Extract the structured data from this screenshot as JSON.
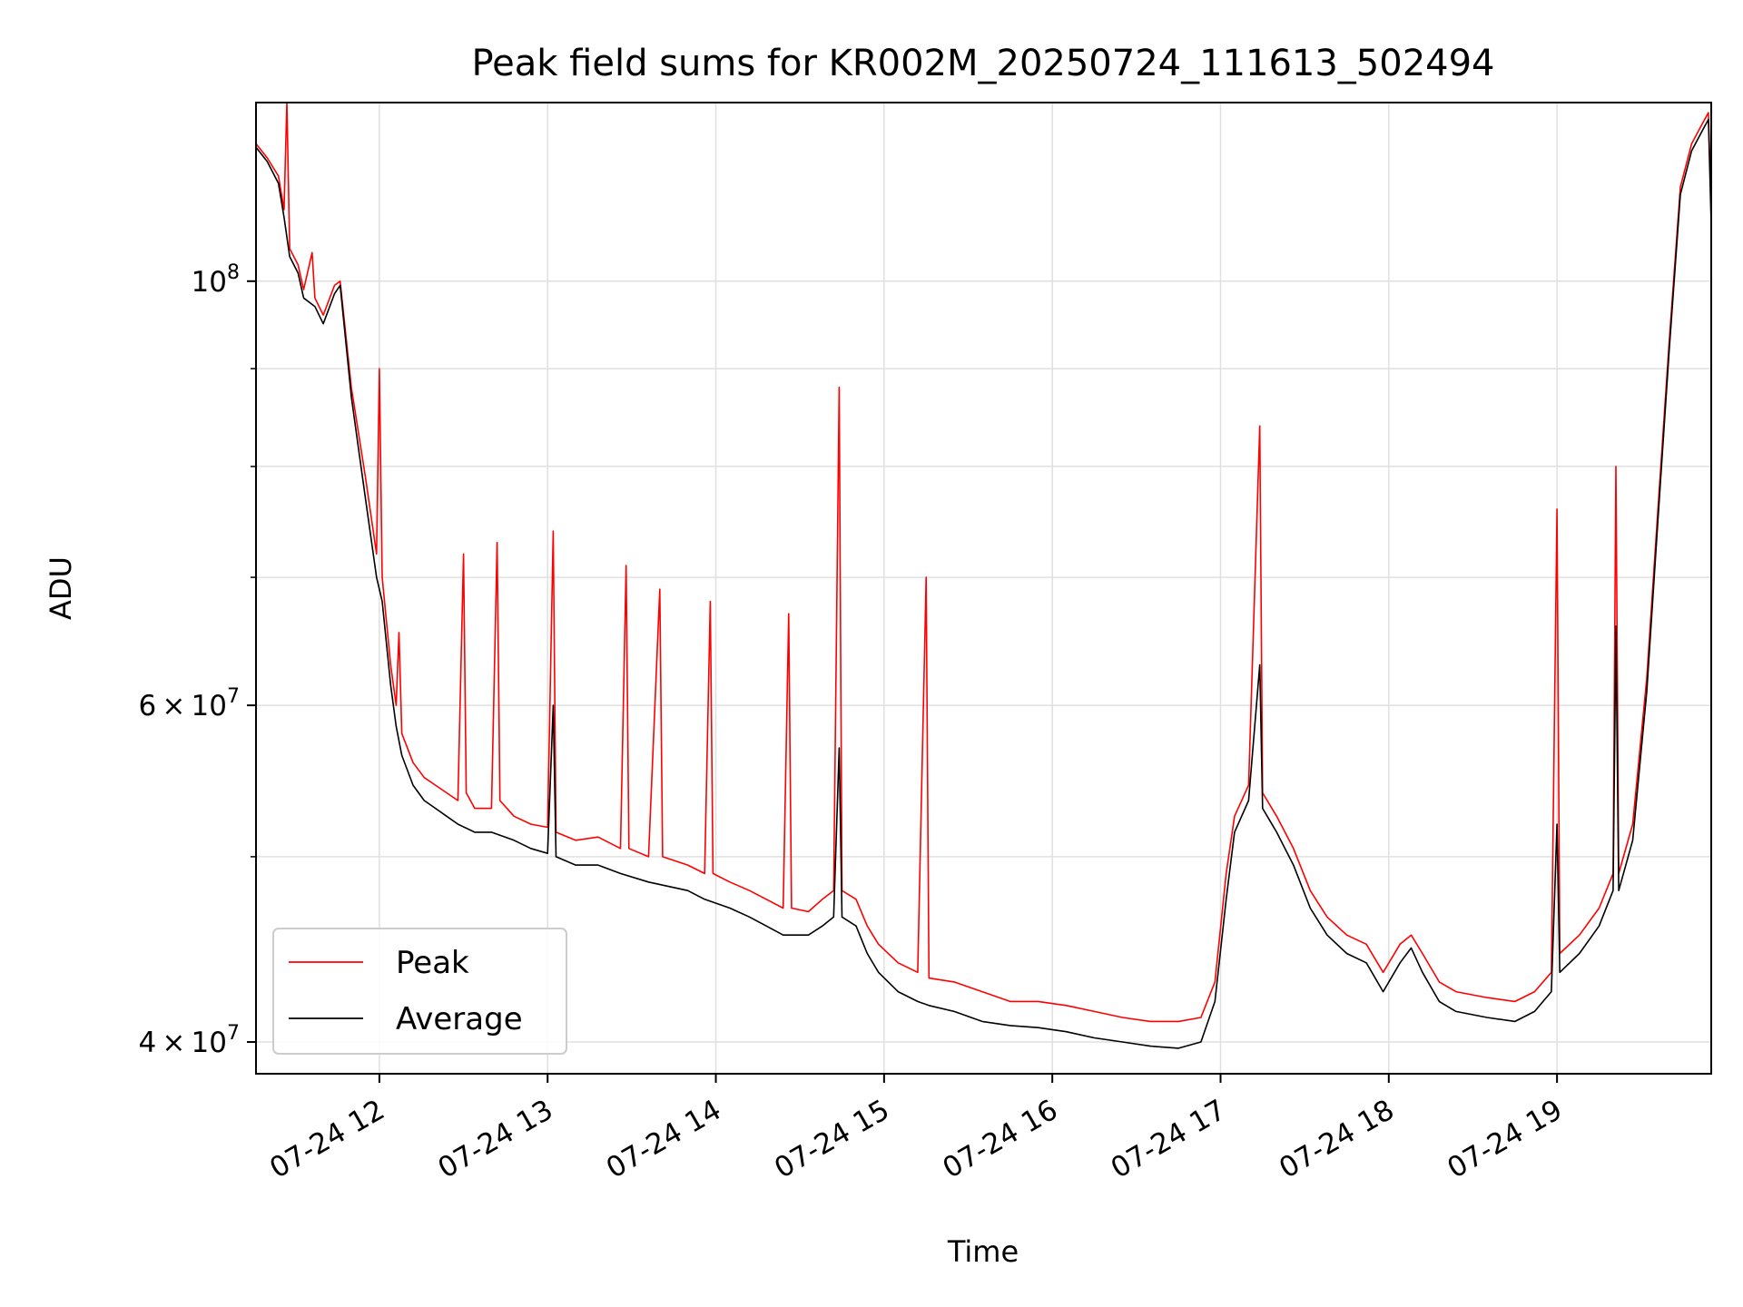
{
  "chart_data": {
    "type": "line",
    "title": "Peak field sums for KR002M_20250724_111613_502494",
    "xlabel": "Time",
    "ylabel": "ADU",
    "yscale": "log",
    "xlim": [
      "2025-07-24 11:16",
      "2025-07-24 19:55"
    ],
    "ylim": [
      38500000,
      124000000
    ],
    "x_ticks": [
      {
        "value": "2025-07-24 12:00",
        "label": "07-24 12"
      },
      {
        "value": "2025-07-24 13:00",
        "label": "07-24 13"
      },
      {
        "value": "2025-07-24 14:00",
        "label": "07-24 14"
      },
      {
        "value": "2025-07-24 15:00",
        "label": "07-24 15"
      },
      {
        "value": "2025-07-24 16:00",
        "label": "07-24 16"
      },
      {
        "value": "2025-07-24 17:00",
        "label": "07-24 17"
      },
      {
        "value": "2025-07-24 18:00",
        "label": "07-24 18"
      },
      {
        "value": "2025-07-24 19:00",
        "label": "07-24 19"
      }
    ],
    "y_ticks_major": [
      {
        "value": 40000000,
        "base": "4",
        "times": "×",
        "exp_base": "10",
        "exp": "7"
      },
      {
        "value": 60000000,
        "base": "6",
        "times": "×",
        "exp_base": "10",
        "exp": "7"
      },
      {
        "value": 100000000,
        "base": "",
        "times": "",
        "exp_base": "10",
        "exp": "8"
      }
    ],
    "y_ticks_minor": [
      50000000,
      70000000,
      80000000,
      90000000
    ],
    "grid": true,
    "legend": "lower-left",
    "series": [
      {
        "name": "Peak",
        "color": "#ff0000",
        "points": [
          [
            "2025-07-24 11:16",
            118000000
          ],
          [
            "2025-07-24 11:20",
            116000000
          ],
          [
            "2025-07-24 11:24",
            113500000
          ],
          [
            "2025-07-24 11:26",
            109000000
          ],
          [
            "2025-07-24 11:27",
            124000000
          ],
          [
            "2025-07-24 11:28",
            104000000
          ],
          [
            "2025-07-24 11:31",
            102000000
          ],
          [
            "2025-07-24 11:33",
            99000000
          ],
          [
            "2025-07-24 11:36",
            103500000
          ],
          [
            "2025-07-24 11:37",
            98000000
          ],
          [
            "2025-07-24 11:40",
            96000000
          ],
          [
            "2025-07-24 11:44",
            99500000
          ],
          [
            "2025-07-24 11:46",
            100000000
          ],
          [
            "2025-07-24 11:50",
            88000000
          ],
          [
            "2025-07-24 11:55",
            79000000
          ],
          [
            "2025-07-24 11:59",
            72000000
          ],
          [
            "2025-07-24 12:00",
            90000000
          ],
          [
            "2025-07-24 12:01",
            70000000
          ],
          [
            "2025-07-24 12:04",
            63000000
          ],
          [
            "2025-07-24 12:06",
            60000000
          ],
          [
            "2025-07-24 12:07",
            65500000
          ],
          [
            "2025-07-24 12:08",
            58000000
          ],
          [
            "2025-07-24 12:12",
            56000000
          ],
          [
            "2025-07-24 12:16",
            55000000
          ],
          [
            "2025-07-24 12:20",
            54500000
          ],
          [
            "2025-07-24 12:24",
            54000000
          ],
          [
            "2025-07-24 12:28",
            53500000
          ],
          [
            "2025-07-24 12:30",
            72000000
          ],
          [
            "2025-07-24 12:31",
            54000000
          ],
          [
            "2025-07-24 12:34",
            53000000
          ],
          [
            "2025-07-24 12:40",
            53000000
          ],
          [
            "2025-07-24 12:42",
            73000000
          ],
          [
            "2025-07-24 12:43",
            53500000
          ],
          [
            "2025-07-24 12:48",
            52500000
          ],
          [
            "2025-07-24 12:54",
            52000000
          ],
          [
            "2025-07-24 13:00",
            51800000
          ],
          [
            "2025-07-24 13:02",
            74000000
          ],
          [
            "2025-07-24 13:03",
            51500000
          ],
          [
            "2025-07-24 13:10",
            51000000
          ],
          [
            "2025-07-24 13:18",
            51200000
          ],
          [
            "2025-07-24 13:26",
            50500000
          ],
          [
            "2025-07-24 13:28",
            71000000
          ],
          [
            "2025-07-24 13:29",
            50500000
          ],
          [
            "2025-07-24 13:36",
            50000000
          ],
          [
            "2025-07-24 13:40",
            69000000
          ],
          [
            "2025-07-24 13:41",
            50000000
          ],
          [
            "2025-07-24 13:50",
            49500000
          ],
          [
            "2025-07-24 13:56",
            49000000
          ],
          [
            "2025-07-24 13:58",
            68000000
          ],
          [
            "2025-07-24 13:59",
            49000000
          ],
          [
            "2025-07-24 14:05",
            48500000
          ],
          [
            "2025-07-24 14:12",
            48000000
          ],
          [
            "2025-07-24 14:18",
            47500000
          ],
          [
            "2025-07-24 14:24",
            47000000
          ],
          [
            "2025-07-24 14:26",
            67000000
          ],
          [
            "2025-07-24 14:27",
            47000000
          ],
          [
            "2025-07-24 14:33",
            46800000
          ],
          [
            "2025-07-24 14:38",
            47500000
          ],
          [
            "2025-07-24 14:42",
            48000000
          ],
          [
            "2025-07-24 14:44",
            88000000
          ],
          [
            "2025-07-24 14:45",
            48000000
          ],
          [
            "2025-07-24 14:50",
            47500000
          ],
          [
            "2025-07-24 14:54",
            46000000
          ],
          [
            "2025-07-24 14:58",
            45000000
          ],
          [
            "2025-07-24 15:05",
            44000000
          ],
          [
            "2025-07-24 15:12",
            43500000
          ],
          [
            "2025-07-24 15:15",
            70000000
          ],
          [
            "2025-07-24 15:16",
            43200000
          ],
          [
            "2025-07-24 15:25",
            43000000
          ],
          [
            "2025-07-24 15:35",
            42500000
          ],
          [
            "2025-07-24 15:45",
            42000000
          ],
          [
            "2025-07-24 15:55",
            42000000
          ],
          [
            "2025-07-24 16:05",
            41800000
          ],
          [
            "2025-07-24 16:15",
            41500000
          ],
          [
            "2025-07-24 16:25",
            41200000
          ],
          [
            "2025-07-24 16:35",
            41000000
          ],
          [
            "2025-07-24 16:45",
            41000000
          ],
          [
            "2025-07-24 16:53",
            41200000
          ],
          [
            "2025-07-24 16:58",
            43000000
          ],
          [
            "2025-07-24 17:02",
            49000000
          ],
          [
            "2025-07-24 17:05",
            52500000
          ],
          [
            "2025-07-24 17:10",
            54500000
          ],
          [
            "2025-07-24 17:14",
            84000000
          ],
          [
            "2025-07-24 17:15",
            54000000
          ],
          [
            "2025-07-24 17:20",
            52500000
          ],
          [
            "2025-07-24 17:26",
            50500000
          ],
          [
            "2025-07-24 17:32",
            48000000
          ],
          [
            "2025-07-24 17:38",
            46500000
          ],
          [
            "2025-07-24 17:45",
            45500000
          ],
          [
            "2025-07-24 17:52",
            45000000
          ],
          [
            "2025-07-24 17:58",
            43500000
          ],
          [
            "2025-07-24 18:04",
            45000000
          ],
          [
            "2025-07-24 18:08",
            45500000
          ],
          [
            "2025-07-24 18:12",
            44500000
          ],
          [
            "2025-07-24 18:18",
            43000000
          ],
          [
            "2025-07-24 18:24",
            42500000
          ],
          [
            "2025-07-24 18:35",
            42200000
          ],
          [
            "2025-07-24 18:45",
            42000000
          ],
          [
            "2025-07-24 18:52",
            42500000
          ],
          [
            "2025-07-24 18:58",
            43500000
          ],
          [
            "2025-07-24 19:00",
            76000000
          ],
          [
            "2025-07-24 19:01",
            44500000
          ],
          [
            "2025-07-24 19:08",
            45500000
          ],
          [
            "2025-07-24 19:15",
            47000000
          ],
          [
            "2025-07-24 19:20",
            49000000
          ],
          [
            "2025-07-24 19:21",
            80000000
          ],
          [
            "2025-07-24 19:22",
            49000000
          ],
          [
            "2025-07-24 19:27",
            52000000
          ],
          [
            "2025-07-24 19:32",
            62000000
          ],
          [
            "2025-07-24 19:36",
            76000000
          ],
          [
            "2025-07-24 19:40",
            93000000
          ],
          [
            "2025-07-24 19:44",
            112000000
          ],
          [
            "2025-07-24 19:48",
            118000000
          ],
          [
            "2025-07-24 19:52",
            121000000
          ],
          [
            "2025-07-24 19:54",
            122500000
          ],
          [
            "2025-07-24 19:55",
            109000000
          ]
        ]
      },
      {
        "name": "Average",
        "color": "#000000",
        "points": [
          [
            "2025-07-24 11:16",
            117500000
          ],
          [
            "2025-07-24 11:20",
            115500000
          ],
          [
            "2025-07-24 11:24",
            112500000
          ],
          [
            "2025-07-24 11:26",
            108000000
          ],
          [
            "2025-07-24 11:28",
            103000000
          ],
          [
            "2025-07-24 11:31",
            101000000
          ],
          [
            "2025-07-24 11:33",
            98000000
          ],
          [
            "2025-07-24 11:37",
            97000000
          ],
          [
            "2025-07-24 11:40",
            95000000
          ],
          [
            "2025-07-24 11:44",
            98500000
          ],
          [
            "2025-07-24 11:46",
            99500000
          ],
          [
            "2025-07-24 11:50",
            87000000
          ],
          [
            "2025-07-24 11:55",
            77000000
          ],
          [
            "2025-07-24 11:59",
            70000000
          ],
          [
            "2025-07-24 12:01",
            68000000
          ],
          [
            "2025-07-24 12:04",
            61500000
          ],
          [
            "2025-07-24 12:06",
            58500000
          ],
          [
            "2025-07-24 12:08",
            56500000
          ],
          [
            "2025-07-24 12:12",
            54500000
          ],
          [
            "2025-07-24 12:16",
            53500000
          ],
          [
            "2025-07-24 12:20",
            53000000
          ],
          [
            "2025-07-24 12:24",
            52500000
          ],
          [
            "2025-07-24 12:28",
            52000000
          ],
          [
            "2025-07-24 12:34",
            51500000
          ],
          [
            "2025-07-24 12:40",
            51500000
          ],
          [
            "2025-07-24 12:48",
            51000000
          ],
          [
            "2025-07-24 12:54",
            50500000
          ],
          [
            "2025-07-24 13:00",
            50200000
          ],
          [
            "2025-07-24 13:02",
            60000000
          ],
          [
            "2025-07-24 13:03",
            50000000
          ],
          [
            "2025-07-24 13:10",
            49500000
          ],
          [
            "2025-07-24 13:18",
            49500000
          ],
          [
            "2025-07-24 13:26",
            49000000
          ],
          [
            "2025-07-24 13:36",
            48500000
          ],
          [
            "2025-07-24 13:50",
            48000000
          ],
          [
            "2025-07-24 13:56",
            47500000
          ],
          [
            "2025-07-24 14:05",
            47000000
          ],
          [
            "2025-07-24 14:12",
            46500000
          ],
          [
            "2025-07-24 14:18",
            46000000
          ],
          [
            "2025-07-24 14:24",
            45500000
          ],
          [
            "2025-07-24 14:33",
            45500000
          ],
          [
            "2025-07-24 14:38",
            46000000
          ],
          [
            "2025-07-24 14:42",
            46500000
          ],
          [
            "2025-07-24 14:44",
            57000000
          ],
          [
            "2025-07-24 14:45",
            46500000
          ],
          [
            "2025-07-24 14:50",
            46000000
          ],
          [
            "2025-07-24 14:54",
            44500000
          ],
          [
            "2025-07-24 14:58",
            43500000
          ],
          [
            "2025-07-24 15:05",
            42500000
          ],
          [
            "2025-07-24 15:12",
            42000000
          ],
          [
            "2025-07-24 15:16",
            41800000
          ],
          [
            "2025-07-24 15:25",
            41500000
          ],
          [
            "2025-07-24 15:35",
            41000000
          ],
          [
            "2025-07-24 15:45",
            40800000
          ],
          [
            "2025-07-24 15:55",
            40700000
          ],
          [
            "2025-07-24 16:05",
            40500000
          ],
          [
            "2025-07-24 16:15",
            40200000
          ],
          [
            "2025-07-24 16:25",
            40000000
          ],
          [
            "2025-07-24 16:35",
            39800000
          ],
          [
            "2025-07-24 16:45",
            39700000
          ],
          [
            "2025-07-24 16:53",
            40000000
          ],
          [
            "2025-07-24 16:58",
            42000000
          ],
          [
            "2025-07-24 17:02",
            47500000
          ],
          [
            "2025-07-24 17:05",
            51500000
          ],
          [
            "2025-07-24 17:10",
            53500000
          ],
          [
            "2025-07-24 17:14",
            63000000
          ],
          [
            "2025-07-24 17:15",
            53000000
          ],
          [
            "2025-07-24 17:20",
            51500000
          ],
          [
            "2025-07-24 17:26",
            49500000
          ],
          [
            "2025-07-24 17:32",
            47000000
          ],
          [
            "2025-07-24 17:38",
            45500000
          ],
          [
            "2025-07-24 17:45",
            44500000
          ],
          [
            "2025-07-24 17:52",
            44000000
          ],
          [
            "2025-07-24 17:58",
            42500000
          ],
          [
            "2025-07-24 18:04",
            44000000
          ],
          [
            "2025-07-24 18:08",
            44800000
          ],
          [
            "2025-07-24 18:12",
            43500000
          ],
          [
            "2025-07-24 18:18",
            42000000
          ],
          [
            "2025-07-24 18:24",
            41500000
          ],
          [
            "2025-07-24 18:35",
            41200000
          ],
          [
            "2025-07-24 18:45",
            41000000
          ],
          [
            "2025-07-24 18:52",
            41500000
          ],
          [
            "2025-07-24 18:58",
            42500000
          ],
          [
            "2025-07-24 19:00",
            52000000
          ],
          [
            "2025-07-24 19:01",
            43500000
          ],
          [
            "2025-07-24 19:08",
            44500000
          ],
          [
            "2025-07-24 19:15",
            46000000
          ],
          [
            "2025-07-24 19:20",
            48000000
          ],
          [
            "2025-07-24 19:21",
            66000000
          ],
          [
            "2025-07-24 19:22",
            48000000
          ],
          [
            "2025-07-24 19:27",
            51000000
          ],
          [
            "2025-07-24 19:32",
            61000000
          ],
          [
            "2025-07-24 19:36",
            75000000
          ],
          [
            "2025-07-24 19:40",
            92000000
          ],
          [
            "2025-07-24 19:44",
            111000000
          ],
          [
            "2025-07-24 19:48",
            117000000
          ],
          [
            "2025-07-24 19:52",
            120000000
          ],
          [
            "2025-07-24 19:54",
            121500000
          ],
          [
            "2025-07-24 19:55",
            107000000
          ]
        ]
      }
    ]
  }
}
